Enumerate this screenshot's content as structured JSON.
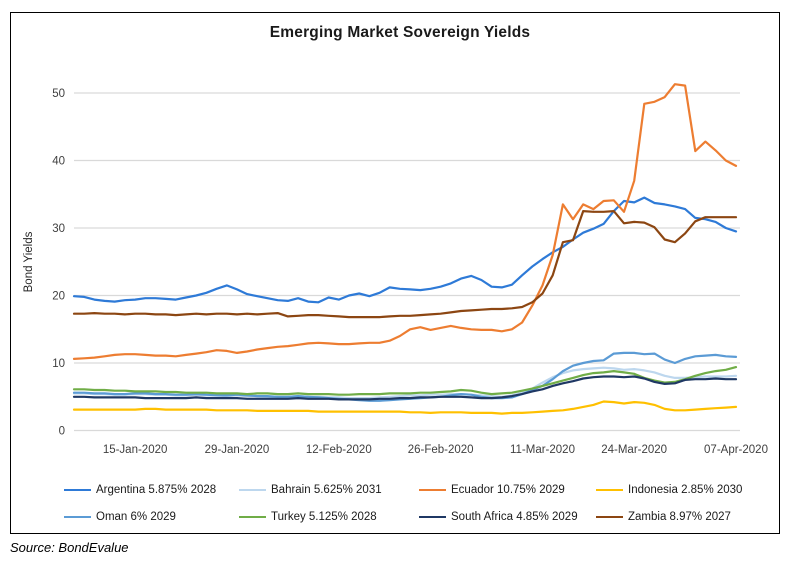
{
  "chart_data": {
    "type": "line",
    "title": "Emerging Market Sovereign Yields",
    "xlabel": "",
    "ylabel": "Bond Yields",
    "ylim": [
      0,
      50
    ],
    "yticks": [
      0,
      10,
      20,
      30,
      40,
      50
    ],
    "grid": true,
    "gridline_color": "#D9D9D9",
    "legend_position": "bottom",
    "source": "Source: BondEvalue",
    "xtick_labels": [
      "15-Jan-2020",
      "29-Jan-2020",
      "12-Feb-2020",
      "26-Feb-2020",
      "11-Mar-2020",
      "24-Mar-2020",
      "07-Apr-2020"
    ],
    "xtick_indices": [
      6,
      16,
      26,
      36,
      46,
      55,
      65
    ],
    "x_dates": [
      "07-Jan",
      "08-Jan",
      "09-Jan",
      "10-Jan",
      "13-Jan",
      "14-Jan",
      "15-Jan",
      "16-Jan",
      "17-Jan",
      "20-Jan",
      "21-Jan",
      "22-Jan",
      "23-Jan",
      "24-Jan",
      "27-Jan",
      "28-Jan",
      "29-Jan",
      "30-Jan",
      "31-Jan",
      "03-Feb",
      "04-Feb",
      "05-Feb",
      "06-Feb",
      "07-Feb",
      "10-Feb",
      "11-Feb",
      "12-Feb",
      "13-Feb",
      "14-Feb",
      "17-Feb",
      "18-Feb",
      "19-Feb",
      "20-Feb",
      "21-Feb",
      "24-Feb",
      "25-Feb",
      "26-Feb",
      "27-Feb",
      "28-Feb",
      "02-Mar",
      "03-Mar",
      "04-Mar",
      "05-Mar",
      "06-Mar",
      "09-Mar",
      "10-Mar",
      "11-Mar",
      "12-Mar",
      "13-Mar",
      "16-Mar",
      "17-Mar",
      "18-Mar",
      "19-Mar",
      "20-Mar",
      "23-Mar",
      "24-Mar",
      "25-Mar",
      "26-Mar",
      "27-Mar",
      "30-Mar",
      "31-Mar",
      "01-Apr",
      "02-Apr",
      "03-Apr",
      "06-Apr",
      "07-Apr"
    ],
    "series": [
      {
        "name": "Argentina 5.875% 2028",
        "color": "#2E7AD7",
        "values": [
          19.9,
          19.8,
          19.4,
          19.2,
          19.1,
          19.3,
          19.4,
          19.6,
          19.6,
          19.5,
          19.4,
          19.7,
          20.0,
          20.4,
          21.0,
          21.5,
          20.9,
          20.2,
          19.9,
          19.6,
          19.3,
          19.2,
          19.6,
          19.1,
          19.0,
          19.7,
          19.4,
          20.0,
          20.3,
          19.9,
          20.4,
          21.2,
          21.0,
          20.9,
          20.8,
          21.0,
          21.3,
          21.8,
          22.5,
          22.9,
          22.3,
          21.3,
          21.2,
          21.6,
          23.0,
          24.3,
          25.4,
          26.4,
          27.2,
          28.3,
          29.3,
          29.9,
          30.6,
          32.5,
          34.0,
          33.8,
          34.5,
          33.7,
          33.5,
          33.2,
          32.8,
          31.5,
          31.3,
          30.9,
          30.0,
          29.5
        ]
      },
      {
        "name": "Bahrain 5.625% 2031",
        "color": "#BDD7EE",
        "values": [
          5.5,
          5.5,
          5.4,
          5.4,
          5.3,
          5.3,
          5.4,
          5.4,
          5.3,
          5.3,
          5.2,
          5.2,
          5.3,
          5.2,
          5.2,
          5.1,
          5.2,
          5.1,
          5.1,
          5.0,
          5.0,
          5.0,
          5.1,
          5.0,
          5.0,
          4.9,
          4.9,
          4.8,
          4.8,
          4.8,
          4.9,
          5.0,
          5.1,
          5.2,
          5.2,
          5.3,
          5.3,
          5.4,
          5.4,
          5.3,
          5.2,
          5.1,
          5.0,
          5.2,
          5.6,
          6.2,
          7.1,
          7.9,
          8.5,
          8.9,
          9.1,
          9.2,
          9.3,
          9.2,
          9.0,
          9.1,
          8.9,
          8.6,
          8.1,
          7.8,
          7.8,
          7.9,
          8.0,
          8.0,
          8.0,
          8.1
        ]
      },
      {
        "name": "Ecuador 10.75% 2029",
        "color": "#ED7D31",
        "values": [
          10.6,
          10.7,
          10.8,
          11.0,
          11.2,
          11.3,
          11.3,
          11.2,
          11.1,
          11.1,
          11.0,
          11.2,
          11.4,
          11.6,
          11.9,
          11.8,
          11.5,
          11.7,
          12.0,
          12.2,
          12.4,
          12.5,
          12.7,
          12.9,
          13.0,
          12.9,
          12.8,
          12.8,
          12.9,
          13.0,
          13.0,
          13.3,
          14.0,
          15.0,
          15.3,
          14.9,
          15.2,
          15.5,
          15.2,
          15.0,
          14.9,
          14.9,
          14.7,
          15.0,
          16.0,
          18.5,
          21.5,
          26.0,
          33.5,
          31.3,
          33.5,
          32.8,
          34.0,
          34.1,
          32.4,
          37.0,
          48.4,
          48.7,
          49.4,
          51.3,
          51.1,
          41.4,
          42.8,
          41.5,
          40.0,
          39.2
        ]
      },
      {
        "name": "Indonesia 2.85% 2030",
        "color": "#FFC000",
        "values": [
          3.1,
          3.1,
          3.1,
          3.1,
          3.1,
          3.1,
          3.1,
          3.2,
          3.2,
          3.1,
          3.1,
          3.1,
          3.1,
          3.1,
          3.0,
          3.0,
          3.0,
          3.0,
          2.9,
          2.9,
          2.9,
          2.9,
          2.9,
          2.9,
          2.8,
          2.8,
          2.8,
          2.8,
          2.8,
          2.8,
          2.8,
          2.8,
          2.8,
          2.7,
          2.7,
          2.6,
          2.7,
          2.7,
          2.7,
          2.6,
          2.6,
          2.6,
          2.5,
          2.6,
          2.6,
          2.7,
          2.8,
          2.9,
          3.0,
          3.2,
          3.5,
          3.8,
          4.3,
          4.2,
          4.0,
          4.2,
          4.1,
          3.8,
          3.2,
          3.0,
          3.0,
          3.1,
          3.2,
          3.3,
          3.4,
          3.5
        ]
      },
      {
        "name": "Oman 6% 2029",
        "color": "#5B9BD5",
        "values": [
          5.6,
          5.6,
          5.5,
          5.5,
          5.4,
          5.4,
          5.5,
          5.5,
          5.4,
          5.4,
          5.3,
          5.3,
          5.4,
          5.3,
          5.2,
          5.2,
          5.3,
          5.2,
          5.1,
          5.1,
          5.0,
          5.0,
          5.1,
          5.0,
          4.9,
          4.8,
          4.7,
          4.6,
          4.5,
          4.4,
          4.4,
          4.5,
          4.6,
          4.7,
          4.8,
          4.9,
          5.0,
          5.2,
          5.4,
          5.3,
          5.0,
          4.8,
          4.8,
          4.9,
          5.4,
          6.0,
          6.6,
          7.6,
          8.8,
          9.6,
          10.0,
          10.3,
          10.4,
          11.4,
          11.5,
          11.5,
          11.3,
          11.4,
          10.5,
          10.0,
          10.6,
          11.0,
          11.1,
          11.2,
          11.0,
          10.9
        ]
      },
      {
        "name": "Turkey 5.125% 2028",
        "color": "#70AD47",
        "values": [
          6.1,
          6.1,
          6.0,
          6.0,
          5.9,
          5.9,
          5.8,
          5.8,
          5.8,
          5.7,
          5.7,
          5.6,
          5.6,
          5.6,
          5.5,
          5.5,
          5.5,
          5.4,
          5.5,
          5.5,
          5.4,
          5.4,
          5.5,
          5.4,
          5.4,
          5.4,
          5.3,
          5.3,
          5.4,
          5.4,
          5.4,
          5.5,
          5.5,
          5.5,
          5.6,
          5.6,
          5.7,
          5.8,
          6.0,
          5.9,
          5.6,
          5.4,
          5.5,
          5.6,
          5.9,
          6.2,
          6.6,
          7.0,
          7.4,
          7.8,
          8.2,
          8.5,
          8.6,
          8.8,
          8.6,
          8.4,
          7.8,
          7.4,
          7.1,
          7.2,
          7.6,
          8.1,
          8.5,
          8.8,
          9.0,
          9.4
        ]
      },
      {
        "name": "South Africa 4.85% 2029",
        "color": "#1F3864",
        "values": [
          5.0,
          5.0,
          4.9,
          4.9,
          4.9,
          4.9,
          4.9,
          4.8,
          4.8,
          4.8,
          4.8,
          4.8,
          4.9,
          4.8,
          4.8,
          4.8,
          4.8,
          4.7,
          4.7,
          4.7,
          4.7,
          4.7,
          4.8,
          4.7,
          4.7,
          4.7,
          4.6,
          4.6,
          4.6,
          4.6,
          4.7,
          4.7,
          4.8,
          4.8,
          4.9,
          4.9,
          5.0,
          5.0,
          5.0,
          4.9,
          4.8,
          4.8,
          4.9,
          5.1,
          5.4,
          5.8,
          6.1,
          6.6,
          7.0,
          7.3,
          7.7,
          7.9,
          8.0,
          8.0,
          7.9,
          8.0,
          7.7,
          7.2,
          6.9,
          7.0,
          7.5,
          7.6,
          7.6,
          7.7,
          7.6,
          7.6
        ]
      },
      {
        "name": "Zambia 8.97% 2027",
        "color": "#8C4612",
        "values": [
          17.3,
          17.3,
          17.4,
          17.3,
          17.3,
          17.2,
          17.3,
          17.3,
          17.2,
          17.2,
          17.1,
          17.2,
          17.3,
          17.2,
          17.3,
          17.3,
          17.2,
          17.3,
          17.2,
          17.3,
          17.4,
          16.9,
          17.0,
          17.1,
          17.1,
          17.0,
          16.9,
          16.8,
          16.8,
          16.8,
          16.8,
          16.9,
          17.0,
          17.0,
          17.1,
          17.2,
          17.3,
          17.5,
          17.7,
          17.8,
          17.9,
          18.0,
          18.0,
          18.1,
          18.3,
          19.0,
          20.3,
          23.0,
          27.9,
          28.2,
          32.5,
          32.4,
          32.4,
          32.5,
          30.7,
          30.9,
          30.8,
          30.1,
          28.3,
          27.9,
          29.2,
          31.0,
          31.6,
          31.6,
          31.6,
          31.6
        ]
      }
    ]
  }
}
